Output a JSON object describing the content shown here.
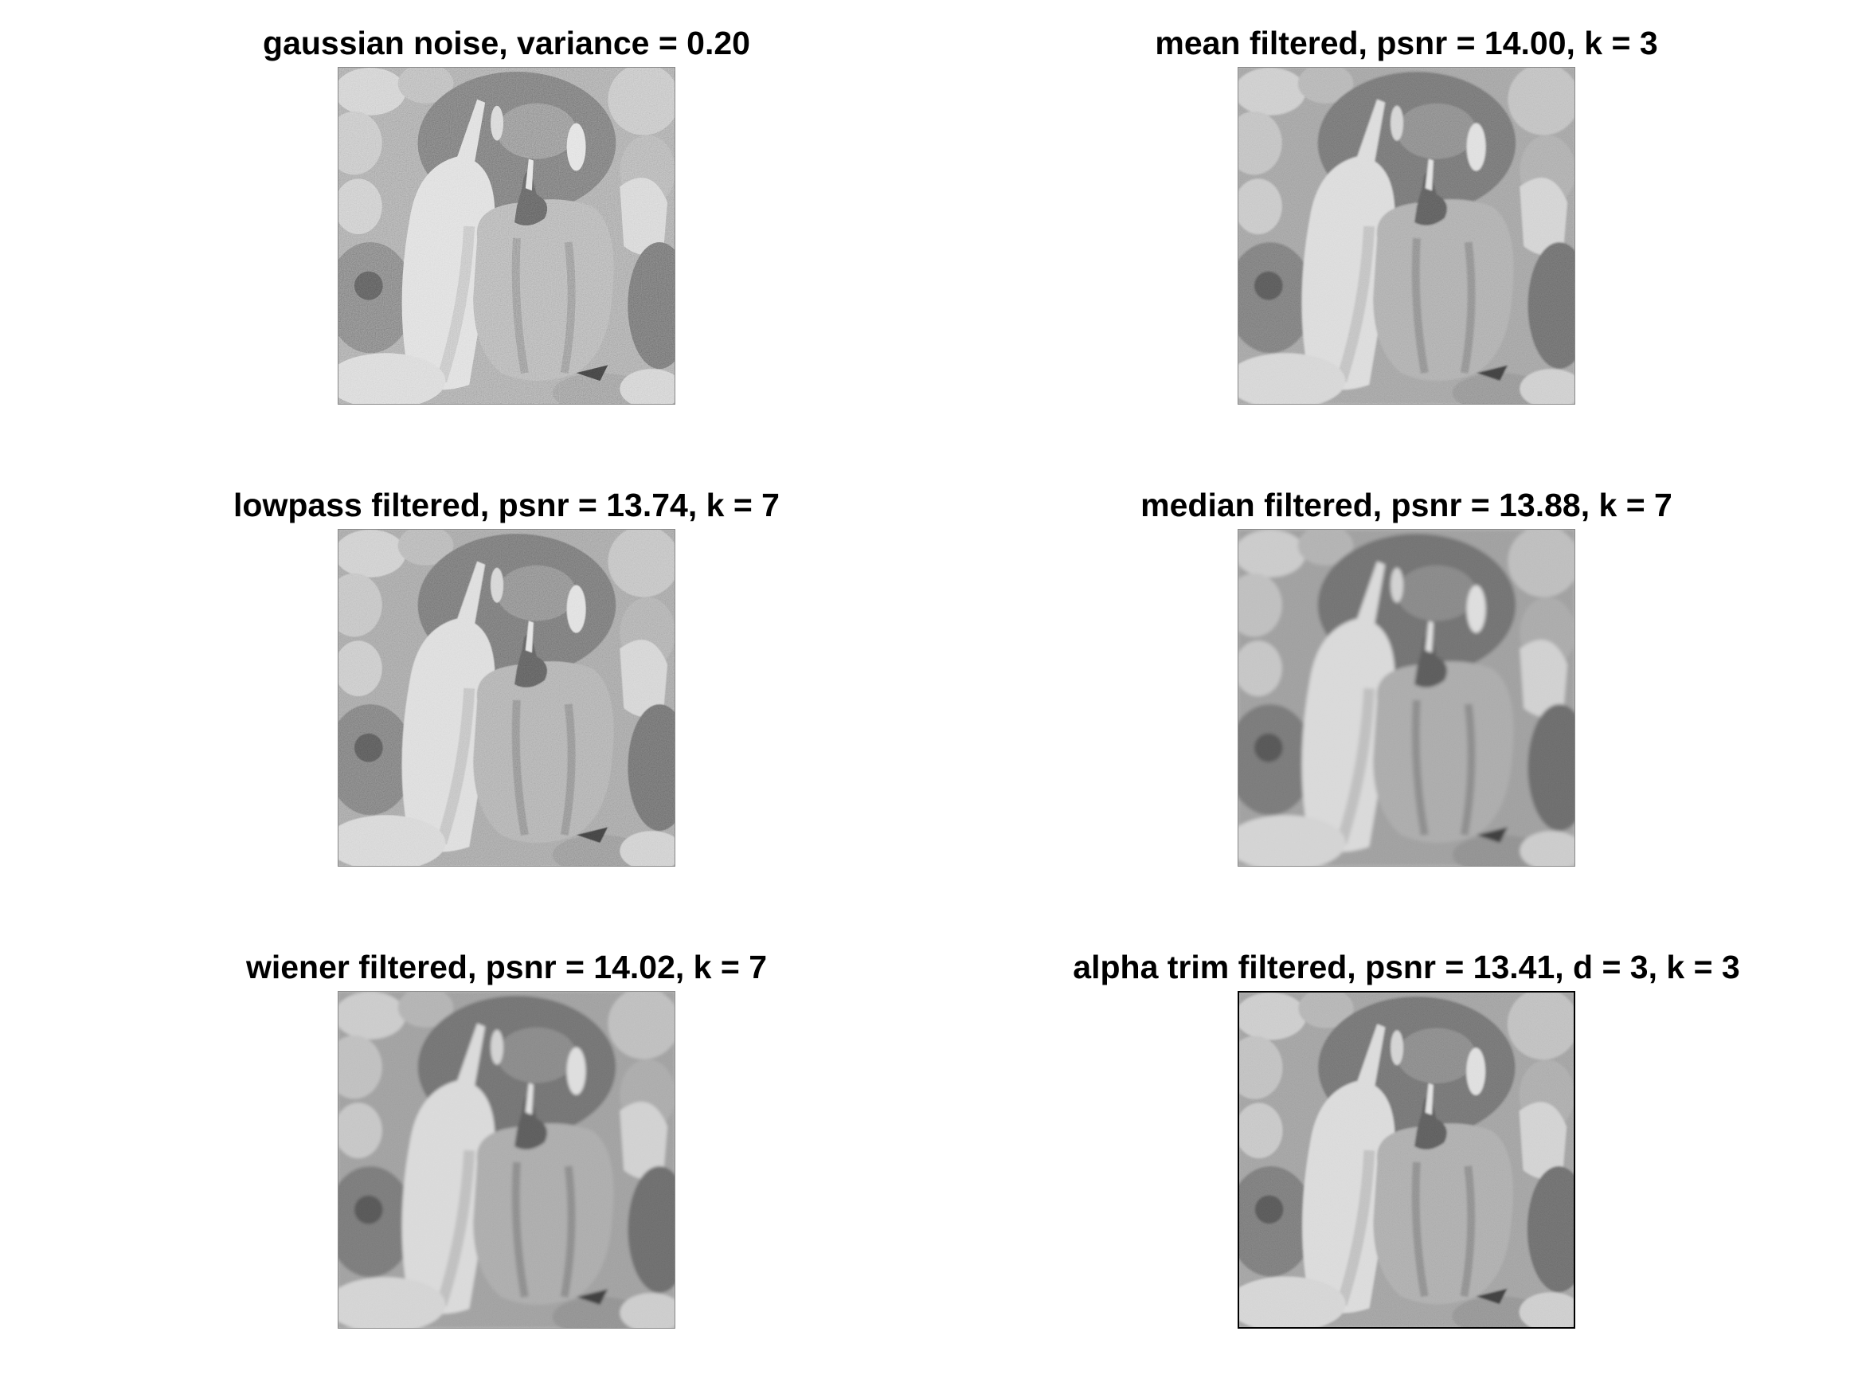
{
  "figure": {
    "panels": [
      {
        "id": "p1",
        "title": "gaussian noise, variance = 0.20",
        "noise": 0.55,
        "blur": 0
      },
      {
        "id": "p2",
        "title": "mean filtered, psnr = 14.00, k = 3",
        "noise": 0.3,
        "blur": 1
      },
      {
        "id": "p3",
        "title": "lowpass filtered, psnr = 13.74, k = 7",
        "noise": 0.4,
        "blur": 0.5
      },
      {
        "id": "p4",
        "title": "median filtered, psnr = 13.88, k = 7",
        "noise": 0.12,
        "blur": 2.2
      },
      {
        "id": "p5",
        "title": "wiener filtered, psnr = 14.02, k = 7",
        "noise": 0.15,
        "blur": 2.0
      },
      {
        "id": "p6",
        "title": "alpha trim filtered, psnr = 13.41, d = 3, k = 3",
        "noise": 0.22,
        "blur": 1.4
      }
    ]
  }
}
